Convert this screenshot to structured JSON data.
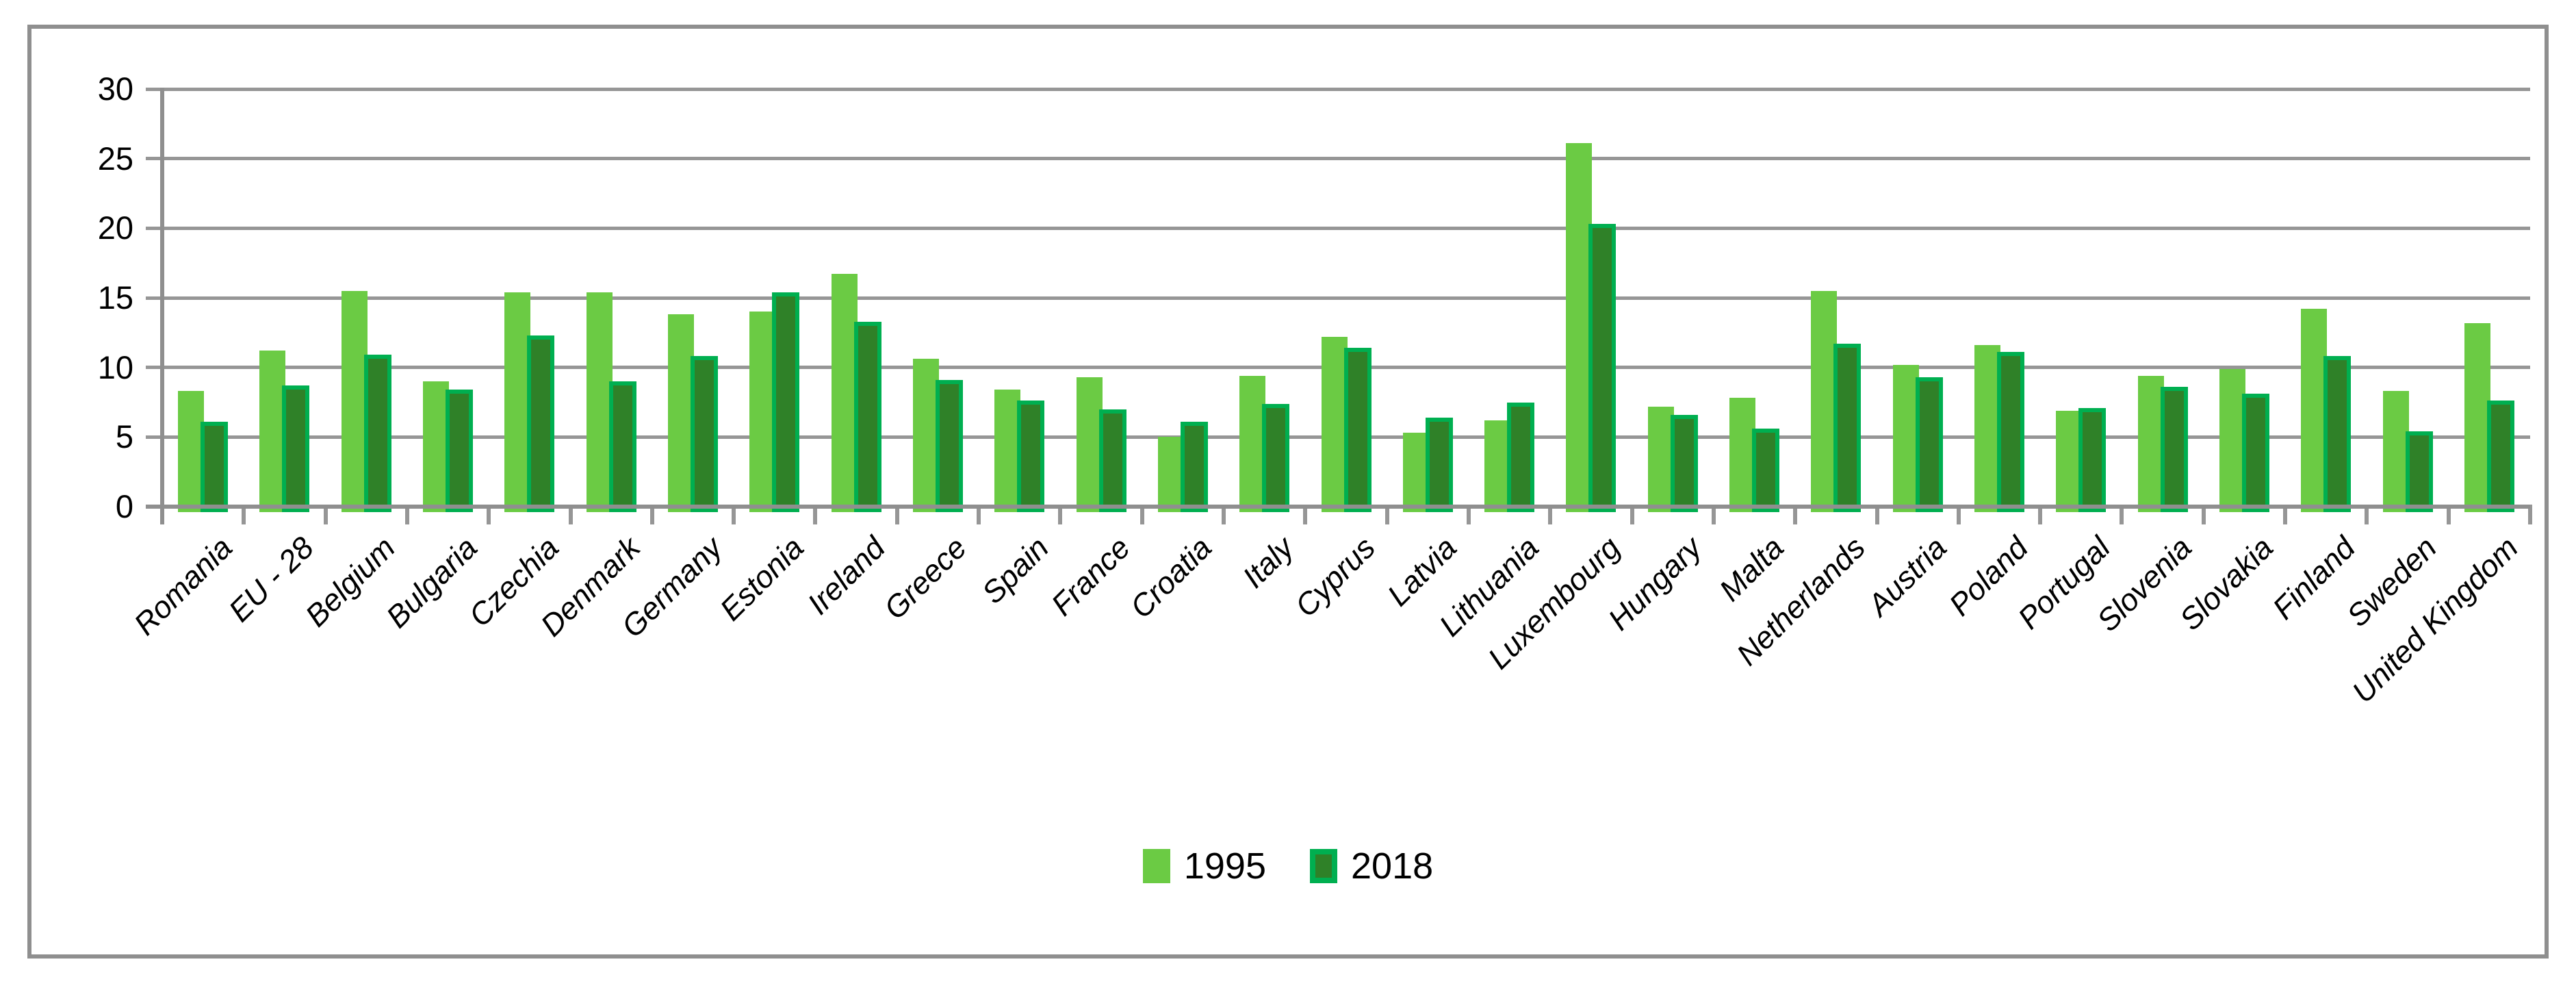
{
  "chart_data": {
    "type": "bar",
    "title": "",
    "xlabel": "",
    "ylabel": "",
    "ylim": [
      0,
      30
    ],
    "yticks": [
      0,
      5,
      10,
      15,
      20,
      25,
      30
    ],
    "grid": true,
    "legend_position": "bottom-center",
    "categories": [
      "Romania",
      "EU - 28",
      "Belgium",
      "Bulgaria",
      "Czechia",
      "Denmark",
      "Germany",
      "Estonia",
      "Ireland",
      "Greece",
      "Spain",
      "France",
      "Croatia",
      "Italy",
      "Cyprus",
      "Latvia",
      "Lithuania",
      "Luxembourg",
      "Hungary",
      "Malta",
      "Netherlands",
      "Austria",
      "Poland",
      "Portugal",
      "Slovenia",
      "Slovakia",
      "Finland",
      "Sweden",
      "United Kingdom"
    ],
    "series": [
      {
        "name": "1995",
        "values": [
          8.3,
          11.2,
          15.5,
          9.0,
          15.4,
          15.4,
          13.8,
          14.0,
          16.7,
          10.6,
          8.4,
          9.3,
          5.0,
          9.4,
          12.2,
          5.3,
          6.2,
          26.1,
          7.2,
          7.8,
          15.5,
          10.2,
          11.6,
          6.9,
          9.4,
          9.9,
          14.2,
          8.3,
          13.2
        ]
      },
      {
        "name": "2018",
        "values": [
          6.1,
          8.7,
          10.9,
          8.4,
          12.3,
          9.0,
          10.8,
          15.4,
          13.3,
          9.1,
          7.6,
          7.0,
          6.1,
          7.4,
          11.4,
          6.4,
          7.5,
          20.3,
          6.6,
          5.6,
          11.7,
          9.3,
          11.1,
          7.1,
          8.6,
          8.1,
          10.8,
          5.4,
          7.6
        ]
      }
    ],
    "colors": {
      "series_1995_fill": "#6BCB44",
      "series_2018_fill": "#2F8128",
      "series_2018_border": "#00AF50",
      "gridline": "#969696",
      "axis": "#8F8F8F",
      "frame_border": "#8F8F8F",
      "text": "#000000",
      "background": "#FFFFFF"
    }
  },
  "legend": {
    "items": [
      {
        "label": "1995"
      },
      {
        "label": "2018"
      }
    ]
  }
}
